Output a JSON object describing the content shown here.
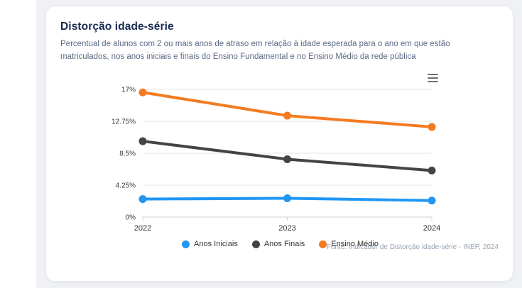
{
  "card": {
    "title": "Distorção idade-série",
    "subtitle": "Percentual de alunos com 2 ou mais anos de atraso em relação à idade esperada para o ano em que estão matriculados, nos anos iniciais e finais do Ensino Fundamental e no Ensino Médio da rede pública",
    "source": "Fonte: Indicador de Distorção idade-série - INEP, 2024"
  },
  "icons": {
    "chart_menu": "hamburger-menu-icon"
  },
  "colors": {
    "page_background": "#eff1f4",
    "card_background": "#ffffff",
    "title_text": "#1a2b50",
    "subtitle_text": "#5c6b85",
    "axis_label": "#333333",
    "gridline": "#e6e6e6",
    "axis_line": "#ccd3de",
    "source_text": "#98a1b3"
  },
  "chart_data": {
    "type": "line",
    "title": "Distorção idade-série",
    "categories": [
      "2022",
      "2023",
      "2024"
    ],
    "series": [
      {
        "name": "Anos Iniciais",
        "color": "#2196f3",
        "values": [
          2.4,
          2.5,
          2.2
        ]
      },
      {
        "name": "Anos Finais",
        "color": "#444444",
        "values": [
          10.1,
          7.7,
          6.2
        ]
      },
      {
        "name": "Ensino Médio",
        "color": "#f47b20",
        "values": [
          16.6,
          13.5,
          12.0
        ]
      }
    ],
    "ylim": [
      0,
      17
    ],
    "yticks": [
      {
        "value": 0,
        "label": "0%"
      },
      {
        "value": 4.25,
        "label": "4.25%"
      },
      {
        "value": 8.5,
        "label": "8.5%"
      },
      {
        "value": 12.75,
        "label": "12.75%"
      },
      {
        "value": 17,
        "label": "17%"
      }
    ],
    "grid": true,
    "legend_position": "bottom"
  }
}
